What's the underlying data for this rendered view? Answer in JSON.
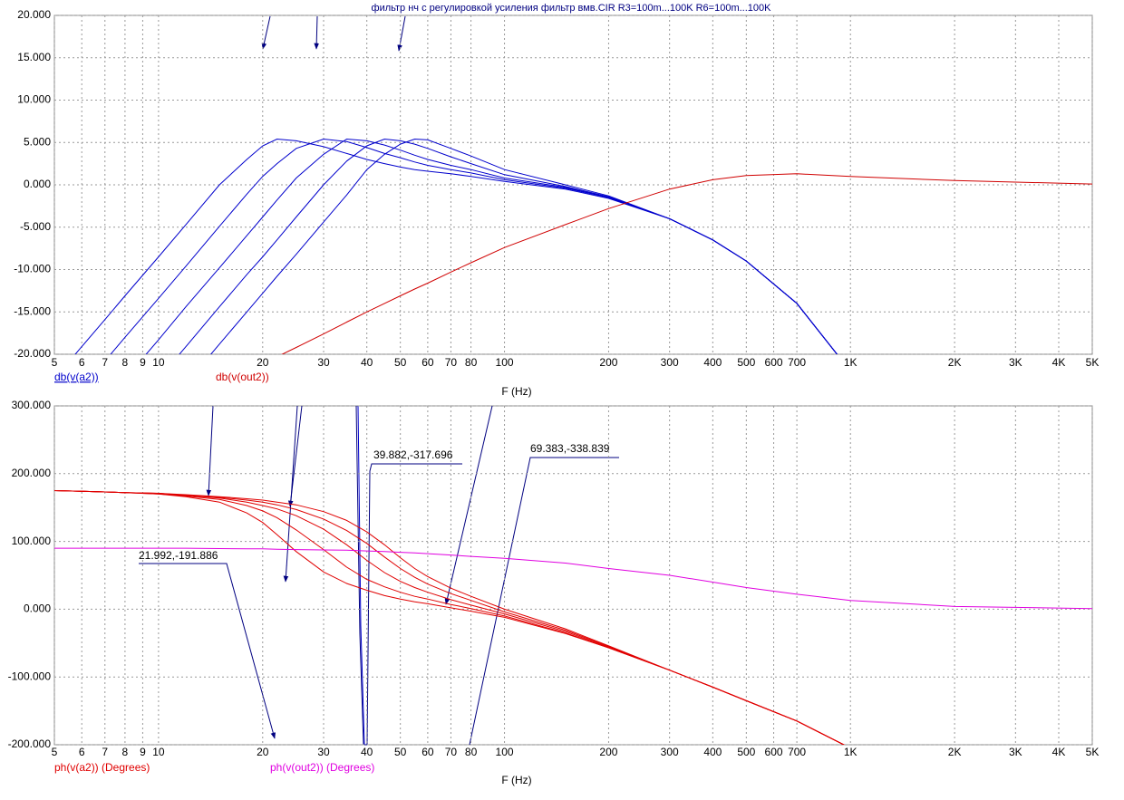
{
  "chart_data": [
    {
      "type": "line",
      "title": "фильтр нч с регулировкой усиления  фильтр вмв.CIR R3=100m...100K R6=100m...100K",
      "x_label": "F (Hz)",
      "log_x": true,
      "grid": true,
      "x": [
        5,
        6,
        7,
        8,
        10,
        12,
        15,
        18,
        20,
        22,
        25,
        30,
        35,
        40,
        45,
        50,
        55,
        60,
        70,
        80,
        100,
        150,
        200,
        300,
        400,
        500,
        700,
        1000,
        2000,
        5000
      ],
      "xlim": [
        5,
        5000
      ],
      "xticks": [
        5,
        6,
        7,
        8,
        9,
        10,
        20,
        30,
        40,
        50,
        60,
        70,
        80,
        100,
        200,
        300,
        400,
        500,
        600,
        700,
        {
          "value": 1000,
          "label": "1K"
        },
        {
          "value": 2000,
          "label": "2K"
        },
        {
          "value": 3000,
          "label": "3K"
        },
        {
          "value": 4000,
          "label": "4K"
        },
        {
          "value": 5000,
          "label": "5K"
        }
      ],
      "ylim": [
        -20,
        20
      ],
      "yticks": [
        {
          "value": -20,
          "label": "-20.000"
        },
        {
          "value": -15,
          "label": "-15.000"
        },
        {
          "value": -10,
          "label": "-10.000"
        },
        {
          "value": -5,
          "label": "-5.000"
        },
        {
          "value": 0,
          "label": "0.000"
        },
        {
          "value": 5,
          "label": "5.000"
        },
        {
          "value": 10,
          "label": "10.000"
        },
        {
          "value": 15,
          "label": "15.000"
        },
        {
          "value": 20,
          "label": "20.000"
        }
      ],
      "series": [
        {
          "name": "db(v(a2))",
          "color": "#0000cc",
          "curves": [
            [
              -22.9,
              -19.1,
              -15.9,
              -13.1,
              -8.5,
              -4.7,
              0,
              3.0,
              4.6,
              5.4,
              5.2,
              4.5,
              3.7,
              3.0,
              2.5,
              2.1,
              1.8,
              1.6,
              1.3,
              1.0,
              0.4,
              -0.5,
              -1.6,
              -4.0,
              -6.5,
              -9.0,
              -14,
              -22,
              null,
              null
            ],
            [
              -27.8,
              -24.0,
              -20.8,
              -18.0,
              -13.4,
              -9.6,
              -4.9,
              -1.1,
              1.0,
              2.5,
              4.3,
              5.4,
              5.1,
              4.4,
              3.7,
              3.2,
              2.7,
              2.3,
              1.8,
              1.4,
              0.6,
              -0.4,
              -1.5,
              -4.0,
              -6.5,
              -9.0,
              -14,
              -22,
              null,
              null
            ],
            [
              -32.7,
              -28.9,
              -25.7,
              -22.9,
              -18.3,
              -14.4,
              -9.8,
              -6.0,
              -3.8,
              -1.8,
              0.8,
              3.6,
              5.4,
              5.2,
              4.7,
              4.1,
              3.5,
              3.0,
              2.3,
              1.8,
              0.8,
              -0.3,
              -1.5,
              -4.0,
              -6.5,
              -9.0,
              -14,
              -22,
              null,
              null
            ],
            [
              -37.3,
              -33.6,
              -30.3,
              -27.6,
              -22.9,
              -19.1,
              -14.4,
              -10.6,
              -8.5,
              -6.5,
              -3.8,
              0,
              2.8,
              4.6,
              5.4,
              5.2,
              4.8,
              4.3,
              3.3,
              2.5,
              1.2,
              -0.2,
              -1.4,
              -4.0,
              -6.5,
              -9.0,
              -14,
              -22,
              null,
              null
            ],
            [
              -41.7,
              -37.9,
              -34.7,
              -31.9,
              -27.3,
              -23.5,
              -18.8,
              -15.0,
              -12.8,
              -10.8,
              -8.2,
              -4.4,
              -1.2,
              1.8,
              3.6,
              4.8,
              5.4,
              5.3,
              4.3,
              3.4,
              1.8,
              0.0,
              -1.3,
              -4.0,
              -6.5,
              -9.0,
              -14,
              -22,
              null,
              null
            ]
          ]
        },
        {
          "name": "db(v(out2))",
          "color": "#d00000",
          "values": [
            null,
            null,
            null,
            null,
            null,
            null,
            null,
            null,
            -21.2,
            -20.3,
            -19.2,
            -17.6,
            -16.2,
            -15.0,
            -14.0,
            -13.1,
            -12.3,
            -11.6,
            -10.3,
            -9.2,
            -7.4,
            -4.7,
            -2.8,
            -0.5,
            0.6,
            1.1,
            1.3,
            1.0,
            0.5,
            0.1
          ]
        }
      ]
    },
    {
      "type": "line",
      "x_label": "F (Hz)",
      "log_x": true,
      "grid": true,
      "x": [
        5,
        6,
        7,
        8,
        10,
        12,
        15,
        18,
        20,
        22,
        25,
        30,
        35,
        40,
        45,
        50,
        55,
        60,
        70,
        80,
        100,
        150,
        200,
        300,
        400,
        500,
        700,
        1000,
        2000,
        5000
      ],
      "xlim": [
        5,
        5000
      ],
      "xticks": [
        5,
        6,
        7,
        8,
        9,
        10,
        20,
        30,
        40,
        50,
        60,
        70,
        80,
        100,
        200,
        300,
        400,
        500,
        600,
        700,
        {
          "value": 1000,
          "label": "1K"
        },
        {
          "value": 2000,
          "label": "2K"
        },
        {
          "value": 3000,
          "label": "3K"
        },
        {
          "value": 4000,
          "label": "4K"
        },
        {
          "value": 5000,
          "label": "5K"
        }
      ],
      "ylim": [
        -200,
        300
      ],
      "yticks": [
        {
          "value": -200,
          "label": "-200.000"
        },
        {
          "value": -100,
          "label": "-100.000"
        },
        {
          "value": 0,
          "label": "0.000"
        },
        {
          "value": 100,
          "label": "100.000"
        },
        {
          "value": 200,
          "label": "200.000"
        },
        {
          "value": 300,
          "label": "300.000"
        }
      ],
      "annotations": [
        "39.882,-317.696",
        "69.383,-338.839",
        "21.992,-191.886"
      ],
      "series": [
        {
          "name": "ph(v(a2)) (Degrees)",
          "color": "#e00000",
          "curves": [
            [
              175,
              174,
              173,
              172,
              170,
              166,
              158,
              142,
              128,
              110,
              85,
              55,
              38,
              28,
              20,
              15,
              11,
              8,
              2,
              -3,
              -12,
              -36,
              -57,
              -90,
              -115,
              -135,
              -165,
              -205,
              null,
              null
            ],
            [
              175,
              174,
              173,
              172,
              170,
              167,
              162,
              153,
              145,
              135,
              117,
              88,
              62,
              44,
              33,
              25,
              19,
              15,
              7,
              1,
              -10,
              -35,
              -57,
              -90,
              -115,
              -135,
              -165,
              -205,
              null,
              null
            ],
            [
              175,
              174,
              173,
              172,
              171,
              168,
              164,
              158,
              153,
              148,
              138,
              118,
              95,
              72,
              54,
              41,
              32,
              25,
              14,
              6,
              -7,
              -33,
              -56,
              -90,
              -115,
              -135,
              -165,
              -205,
              null,
              null
            ],
            [
              175,
              174,
              173,
              172,
              171,
              168,
              165,
              161,
              158,
              154,
              147,
              133,
              116,
              97,
              77,
              60,
              47,
              37,
              23,
              13,
              -4,
              -31,
              -55,
              -90,
              -115,
              -135,
              -165,
              -205,
              null,
              null
            ],
            [
              175,
              174,
              173,
              172,
              171,
              169,
              166,
              163,
              161,
              158,
              154,
              144,
              131,
              114,
              95,
              76,
              60,
              48,
              31,
              19,
              0,
              -29,
              -54,
              -90,
              -115,
              -135,
              -165,
              -205,
              null,
              null
            ]
          ]
        },
        {
          "name": "ph(v(out2)) (Degrees)",
          "color": "#e000e0",
          "values": [
            90,
            90,
            90,
            90,
            90,
            90,
            89.5,
            89,
            89,
            88.5,
            88,
            87.5,
            87,
            86,
            85,
            84,
            83,
            82,
            80,
            78,
            75,
            68,
            60,
            50,
            40,
            32,
            22,
            13,
            4,
            1
          ]
        }
      ]
    }
  ]
}
